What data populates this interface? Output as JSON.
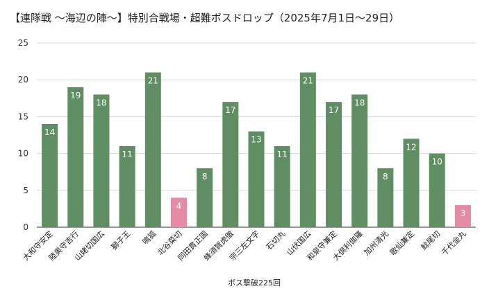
{
  "chart_data": {
    "type": "bar",
    "title": "【連隊戦 〜海辺の陣〜】特別合戦場・超難ボスドロップ（2025年7月1日〜29日）",
    "xlabel": "ボス撃破225回",
    "ylabel": "",
    "ylim": [
      0,
      25
    ],
    "yticks": [
      0,
      5,
      10,
      15,
      20,
      25
    ],
    "grid": true,
    "colors": {
      "default": "#5e8e62",
      "highlight": "#e68aa6",
      "grid": "#d9d9d9"
    },
    "categories": [
      "大和守安定",
      "陸奥守吉行",
      "山姥切国広",
      "獅子王",
      "鳴狐",
      "北谷菜切",
      "同田貫正国",
      "蜂須賀虎徹",
      "宗三左文字",
      "石切丸",
      "山伏国広",
      "和泉守兼定",
      "大倶利伽羅",
      "加州清光",
      "歌仙兼定",
      "鯰尾切",
      "千代金丸"
    ],
    "values": [
      14,
      19,
      18,
      11,
      21,
      4,
      8,
      17,
      13,
      11,
      21,
      17,
      18,
      8,
      12,
      10,
      3
    ],
    "highlighted": [
      false,
      false,
      false,
      false,
      false,
      true,
      false,
      false,
      false,
      false,
      false,
      false,
      false,
      false,
      false,
      false,
      true
    ]
  }
}
